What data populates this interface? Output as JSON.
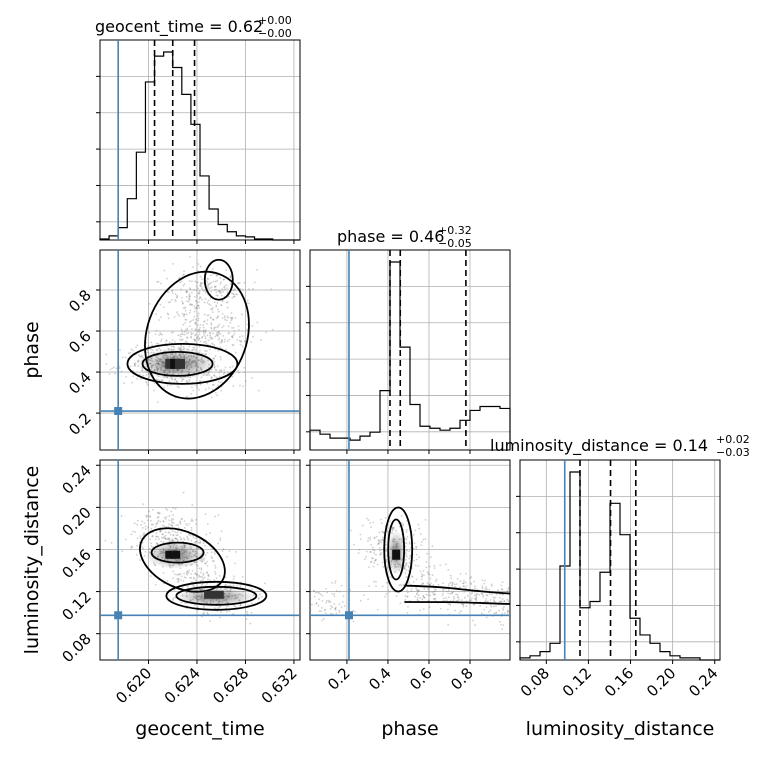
{
  "chart_data": {
    "type": "corner",
    "parameters": [
      "geocent_time",
      "phase",
      "luminosity_distance"
    ],
    "truths": {
      "geocent_time": 0.6175,
      "phase": 0.21,
      "luminosity_distance": 0.0975
    },
    "titles": [
      {
        "param": "geocent_time",
        "text": "geocent_time = 0.62",
        "plus": "+0.00",
        "minus": "−0.00"
      },
      {
        "param": "phase",
        "text": "phase = 0.46",
        "plus": "+0.32",
        "minus": "−0.05"
      },
      {
        "param": "luminosity_distance",
        "text": "luminosity_distance = 0.14",
        "plus": "+0.02",
        "minus": "−0.03"
      }
    ],
    "axes": {
      "geocent_time": {
        "range": [
          0.616,
          0.6325
        ],
        "ticks": [
          0.62,
          0.624,
          0.628,
          0.632
        ],
        "ticklabels": [
          "0.620",
          "0.624",
          "0.628",
          "0.632"
        ]
      },
      "phase": {
        "range": [
          0.02,
          0.995
        ],
        "ticks": [
          0.2,
          0.4,
          0.6,
          0.8
        ],
        "ticklabels": [
          "0.2",
          "0.4",
          "0.6",
          "0.8"
        ]
      },
      "luminosity_distance": {
        "range": [
          0.055,
          0.245
        ],
        "ticks": [
          0.08,
          0.12,
          0.16,
          0.2,
          0.24
        ],
        "ticklabels": [
          "0.08",
          "0.12",
          "0.16",
          "0.20",
          "0.24"
        ]
      }
    },
    "y_tick_labels": {
      "phase": [
        "0.2",
        "0.4",
        "0.6",
        "0.8"
      ],
      "luminosity_distance": [
        "0.08",
        "0.12",
        "0.16",
        "0.20",
        "0.24"
      ]
    },
    "hist_geocent_time": {
      "edges": [
        0.616,
        0.61675,
        0.6175,
        0.61825,
        0.619,
        0.61975,
        0.6205,
        0.62125,
        0.622,
        0.62275,
        0.6235,
        0.62425,
        0.625,
        0.62575,
        0.6265,
        0.62725,
        0.628,
        0.62875,
        0.6295,
        0.63025,
        0.631,
        0.63175,
        0.6325
      ],
      "counts": [
        1,
        4,
        12,
        40,
        85,
        153,
        178,
        182,
        167,
        141,
        112,
        62,
        30,
        15,
        8,
        4,
        3,
        1,
        1,
        0,
        0,
        0
      ]
    },
    "quantiles": {
      "geocent_time": [
        0.6205,
        0.622,
        0.6238
      ],
      "phase": [
        0.41,
        0.46,
        0.78
      ],
      "luminosity_distance": [
        0.112,
        0.141,
        0.165
      ]
    },
    "hist_phase": {
      "edges": [
        0.02,
        0.0688,
        0.1175,
        0.1663,
        0.215,
        0.2638,
        0.3125,
        0.3613,
        0.41,
        0.4588,
        0.5075,
        0.5563,
        0.605,
        0.6538,
        0.7025,
        0.7513,
        0.8,
        0.8488,
        0.8975,
        0.9463,
        0.995
      ],
      "counts": [
        10,
        8,
        6,
        6,
        5,
        7,
        9,
        30,
        95,
        52,
        23,
        12,
        11,
        10,
        11,
        15,
        20,
        22,
        22,
        21
      ]
    },
    "hist_luminosity_distance": {
      "edges": [
        0.055,
        0.0645,
        0.074,
        0.0835,
        0.093,
        0.1025,
        0.112,
        0.1215,
        0.131,
        0.1405,
        0.15,
        0.1595,
        0.169,
        0.1785,
        0.188,
        0.1975,
        0.207,
        0.2165,
        0.226,
        0.2355,
        0.245
      ],
      "counts": [
        1,
        2,
        4,
        8,
        45,
        90,
        25,
        28,
        42,
        75,
        60,
        20,
        12,
        8,
        4,
        2,
        1,
        1,
        0,
        0
      ]
    },
    "scatter_phase_vs_geocent_time": [
      {
        "x": 0.6222,
        "y": 0.45
      },
      {
        "x": 0.6228,
        "y": 0.43
      },
      {
        "x": 0.6218,
        "y": 0.47
      },
      {
        "x": 0.6232,
        "y": 0.5
      },
      {
        "x": 0.6238,
        "y": 0.6
      },
      {
        "x": 0.6242,
        "y": 0.7
      },
      {
        "x": 0.624,
        "y": 0.82
      },
      {
        "x": 0.6258,
        "y": 0.8
      },
      {
        "x": 0.6212,
        "y": 0.4
      },
      {
        "x": 0.625,
        "y": 0.38
      },
      {
        "x": 0.62,
        "y": 0.44
      },
      {
        "x": 0.6262,
        "y": 0.58
      }
    ],
    "scatter_distance_vs_geocent_time": [
      {
        "x": 0.6215,
        "y": 0.185
      },
      {
        "x": 0.6225,
        "y": 0.165
      },
      {
        "x": 0.6228,
        "y": 0.155
      },
      {
        "x": 0.6235,
        "y": 0.145
      },
      {
        "x": 0.6245,
        "y": 0.125
      },
      {
        "x": 0.6252,
        "y": 0.116
      },
      {
        "x": 0.6265,
        "y": 0.112
      },
      {
        "x": 0.621,
        "y": 0.17
      }
    ],
    "scatter_distance_vs_phase": [
      {
        "x": 0.44,
        "y": 0.155
      },
      {
        "x": 0.42,
        "y": 0.175
      },
      {
        "x": 0.46,
        "y": 0.145
      },
      {
        "x": 0.55,
        "y": 0.122
      },
      {
        "x": 0.7,
        "y": 0.118
      },
      {
        "x": 0.85,
        "y": 0.115
      },
      {
        "x": 0.1,
        "y": 0.11
      },
      {
        "x": 0.95,
        "y": 0.108
      }
    ]
  }
}
